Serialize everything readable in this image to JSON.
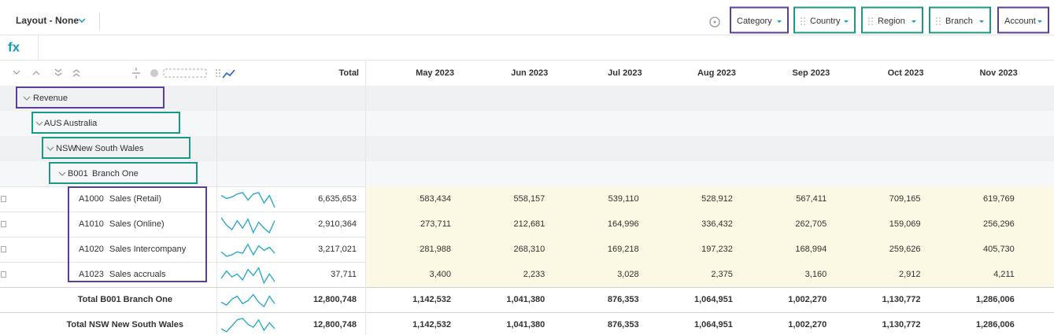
{
  "toolbar": {
    "layout": "Layout - None",
    "filters": [
      "Category",
      "Country",
      "Region",
      "Branch",
      "Account"
    ]
  },
  "formula_label": "fx",
  "table": {
    "total_header": "Total",
    "months": [
      "May 2023",
      "Jun 2023",
      "Jul 2023",
      "Aug 2023",
      "Sep 2023",
      "Oct 2023",
      "Nov 2023"
    ],
    "groups": [
      {
        "name": "Revenue"
      },
      {
        "code": "AUS",
        "name": "Australia"
      },
      {
        "code": "NSW",
        "name": "New South Wales"
      },
      {
        "code": "B001",
        "name": "Branch One"
      }
    ],
    "rows": [
      {
        "code": "A1000",
        "name": "Sales (Retail)",
        "total": "6,635,653",
        "values": [
          "583,434",
          "558,157",
          "539,110",
          "528,912",
          "567,411",
          "709,165",
          "619,769"
        ]
      },
      {
        "code": "A1010",
        "name": "Sales (Online)",
        "total": "2,910,364",
        "values": [
          "273,711",
          "212,681",
          "164,996",
          "336,432",
          "262,705",
          "159,069",
          "256,296"
        ]
      },
      {
        "code": "A1020",
        "name": "Sales Intercompany",
        "total": "3,217,021",
        "values": [
          "281,988",
          "268,310",
          "169,218",
          "197,232",
          "168,994",
          "259,626",
          "405,730"
        ]
      },
      {
        "code": "A1023",
        "name": "Sales accruals",
        "total": "37,711",
        "values": [
          "3,400",
          "2,233",
          "3,028",
          "2,375",
          "3,160",
          "2,912",
          "4,211"
        ]
      }
    ],
    "totals": [
      {
        "label": "Total B001 Branch One",
        "total": "12,800,748",
        "values": [
          "1,142,532",
          "1,041,380",
          "876,353",
          "1,064,951",
          "1,002,270",
          "1,130,772",
          "1,286,006"
        ]
      },
      {
        "label": "Total NSW New South Wales",
        "total": "12,800,748",
        "values": [
          "1,142,532",
          "1,041,380",
          "876,353",
          "1,064,951",
          "1,002,270",
          "1,130,772",
          "1,286,006"
        ]
      }
    ]
  }
}
